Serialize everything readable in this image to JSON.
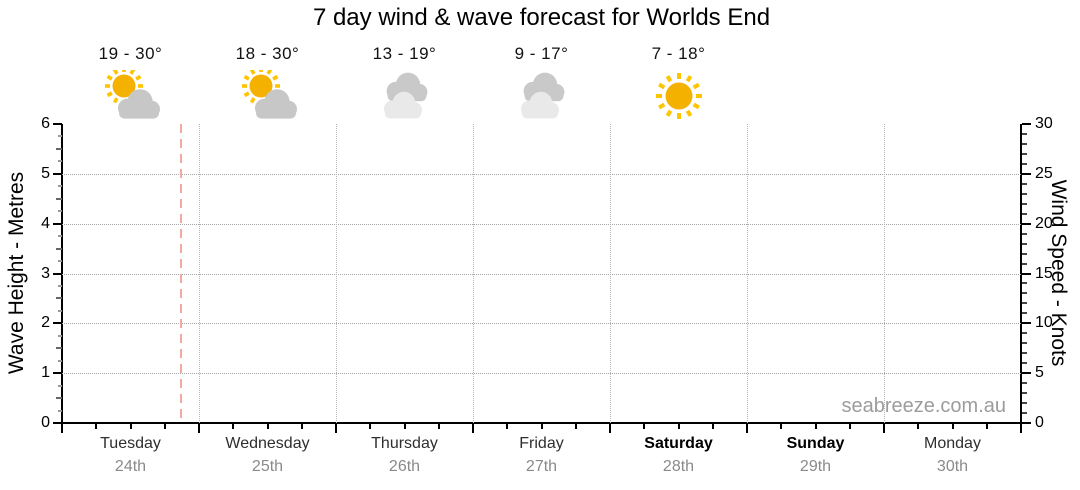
{
  "title": "7 day wind & wave forecast for Worlds End",
  "watermark": "seabreeze.com.au",
  "days": [
    {
      "name": "Tuesday",
      "date": "24th",
      "temp": "19 - 30°",
      "icon": "partly-cloudy",
      "weekend": false
    },
    {
      "name": "Wednesday",
      "date": "25th",
      "temp": "18 - 30°",
      "icon": "partly-cloudy",
      "weekend": false
    },
    {
      "name": "Thursday",
      "date": "26th",
      "temp": "13 - 19°",
      "icon": "cloudy",
      "weekend": false
    },
    {
      "name": "Friday",
      "date": "27th",
      "temp": "9 - 17°",
      "icon": "cloudy",
      "weekend": false
    },
    {
      "name": "Saturday",
      "date": "28th",
      "temp": "7 - 18°",
      "icon": "sunny",
      "weekend": true
    },
    {
      "name": "Sunday",
      "date": "29th",
      "temp": null,
      "icon": null,
      "weekend": true
    },
    {
      "name": "Monday",
      "date": "30th",
      "temp": null,
      "icon": null,
      "weekend": false
    }
  ],
  "axes": {
    "left": {
      "label": "Wave Height - Metres"
    },
    "right": {
      "label": "Wind Speed - Knots"
    }
  },
  "chart_data": {
    "type": "line",
    "title": "7 day wind & wave forecast for Worlds End",
    "x_categories": [
      "Tuesday 24th",
      "Wednesday 25th",
      "Thursday 26th",
      "Friday 27th",
      "Saturday 28th",
      "Sunday 29th",
      "Monday 30th"
    ],
    "series": [],
    "note": "forecast chart frame with no wave/wind series plotted; only axes, gridlines and day headers are visible",
    "left_axis": {
      "label": "Wave Height - Metres",
      "min": 0,
      "max": 6,
      "major_tick": 1,
      "minor_tick": 0.25,
      "gridlines": [
        1,
        2,
        3,
        4,
        5
      ]
    },
    "right_axis": {
      "label": "Wind Speed - Knots",
      "min": 0,
      "max": 30,
      "major_tick": 5,
      "minor_tick": 1
    },
    "x_axis": {
      "minor_ticks_per_day": 4,
      "day_separators_dotted": true
    },
    "now_line": {
      "day_index": 0,
      "day_fraction": 0.86
    },
    "legend": "none",
    "grid": "dotted horizontal at 1-5 m and dotted vertical at day boundaries",
    "temperatures": [
      "19 - 30°",
      "18 - 30°",
      "13 - 19°",
      "9 - 17°",
      "7 - 18°",
      null,
      null
    ],
    "weather_icons": [
      "partly-cloudy",
      "partly-cloudy",
      "cloudy",
      "cloudy",
      "sunny",
      null,
      null
    ]
  },
  "colors": {
    "sun_core": "#F5B100",
    "sun_rays": "#FFC400",
    "cloud_gray": "#C7C7C7",
    "cloud_back": "#C9C9C9",
    "cloud_front": "#E9E9E9",
    "now_line": "#F2A9A2",
    "grid": "#A6A6A6",
    "day_separator": "#B5B5B5",
    "date_text": "#8A8A8A",
    "watermark_text": "#9C9C9C",
    "axis": "#000000"
  }
}
